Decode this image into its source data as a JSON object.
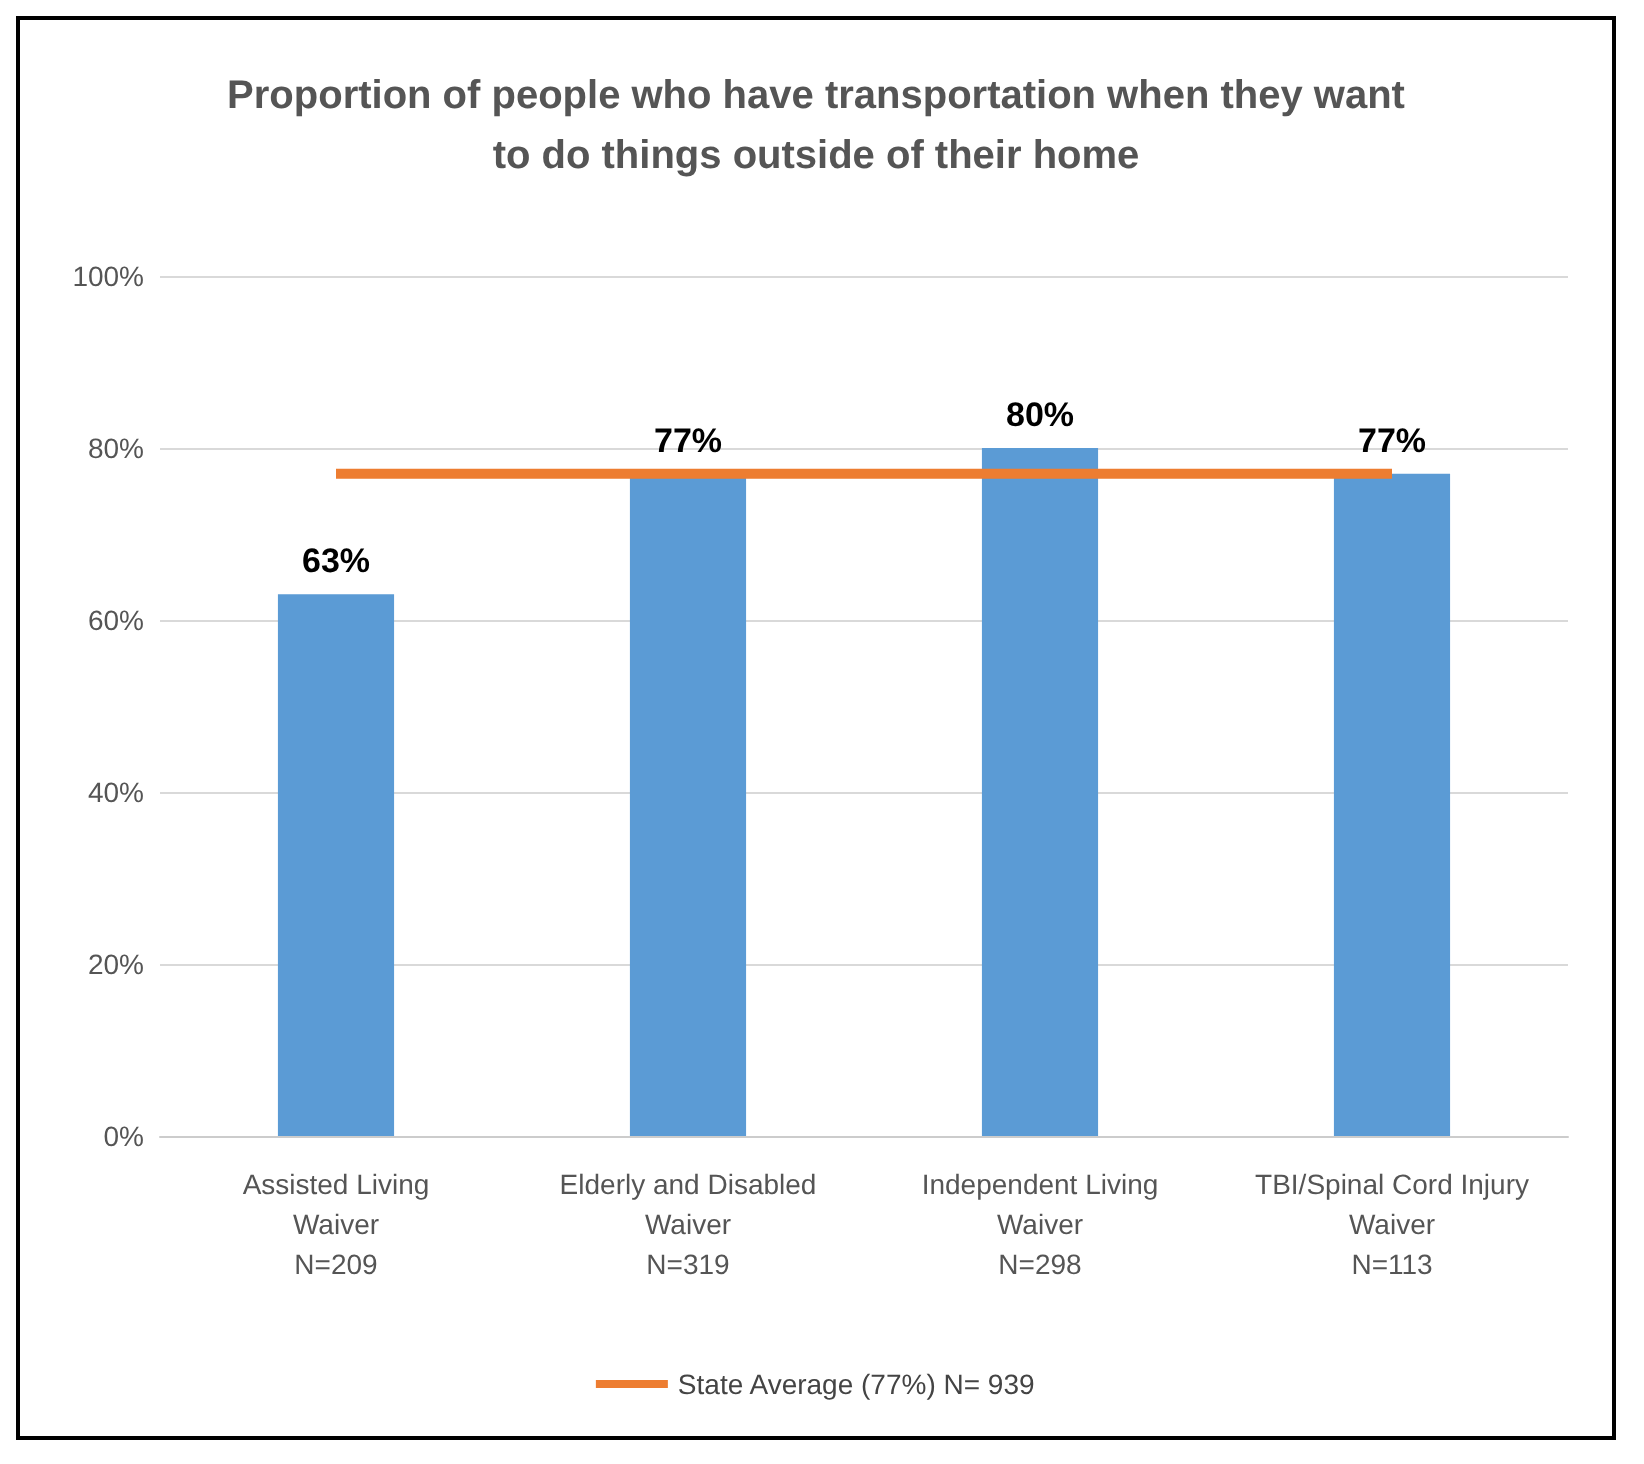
{
  "chart_data": {
    "type": "bar",
    "title": "Proportion of people who have transportation when they want\nto do things outside of their home",
    "categories": [
      "Assisted Living\nWaiver\nN=209",
      "Elderly and Disabled\nWaiver\nN=319",
      "Independent Living\nWaiver\nN=298",
      "TBI/Spinal Cord Injury\nWaiver\nN=113"
    ],
    "series": [
      {
        "color": "#5b9bd5",
        "values": [
          63,
          77,
          80,
          77
        ],
        "value_labels": [
          "63%",
          "77%",
          "80%",
          "77%"
        ]
      },
      {
        "type": "line",
        "name": "State Average (77%) N= 939",
        "color": "#ed7d31",
        "values": [
          77,
          77,
          77,
          77
        ]
      }
    ],
    "ylim": [
      0,
      100
    ],
    "yticks": [
      {
        "value": 0,
        "label": "0%"
      },
      {
        "value": 20,
        "label": "20%"
      },
      {
        "value": 40,
        "label": "40%"
      },
      {
        "value": 60,
        "label": "60%"
      },
      {
        "value": 80,
        "label": "80%"
      },
      {
        "value": 100,
        "label": "100%"
      }
    ],
    "grid": "y",
    "legend": "bottom",
    "marker": "none"
  }
}
